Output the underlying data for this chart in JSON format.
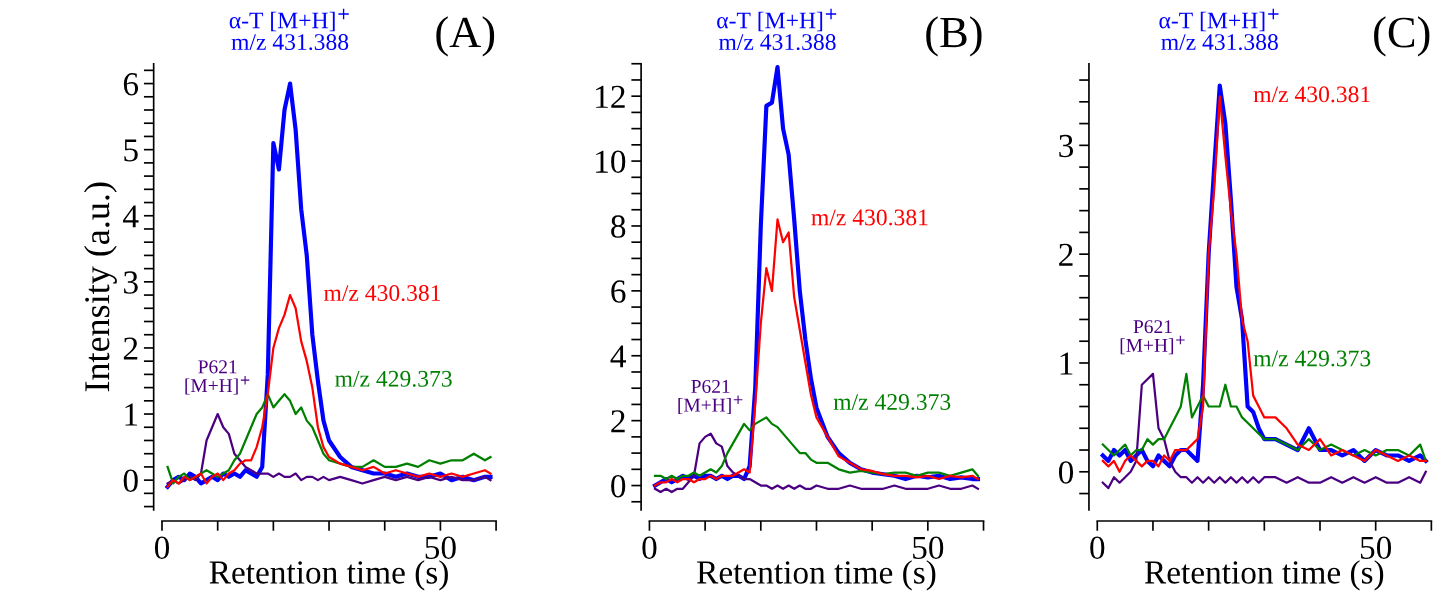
{
  "chart_data": [
    {
      "type": "line",
      "title": "(A)",
      "xlabel": "Retention time (s)",
      "ylabel": "Intensity (a.u.)",
      "grid": false,
      "legend": false,
      "marker": "none",
      "line_style": "solid",
      "xlim": [
        0,
        60
      ],
      "xticks": [
        0,
        {
          "value": 10,
          "label": null
        },
        {
          "value": 20,
          "label": null
        },
        {
          "value": 30,
          "label": null
        },
        {
          "value": 40,
          "label": null
        },
        50,
        {
          "value": 60,
          "label": null
        }
      ],
      "ylim": [
        -0.45,
        6.3
      ],
      "yticks": [
        {
          "value": -0.4,
          "label": null
        },
        {
          "value": -0.2,
          "label": null
        },
        0,
        {
          "value": 0.2,
          "label": null
        },
        {
          "value": 0.4,
          "label": null
        },
        {
          "value": 0.6,
          "label": null
        },
        {
          "value": 0.8,
          "label": null
        },
        1,
        {
          "value": 1.2,
          "label": null
        },
        {
          "value": 1.4,
          "label": null
        },
        {
          "value": 1.6,
          "label": null
        },
        {
          "value": 1.8,
          "label": null
        },
        2,
        {
          "value": 2.2,
          "label": null
        },
        {
          "value": 2.4,
          "label": null
        },
        {
          "value": 2.6,
          "label": null
        },
        {
          "value": 2.8,
          "label": null
        },
        3,
        {
          "value": 3.2,
          "label": null
        },
        {
          "value": 3.4,
          "label": null
        },
        {
          "value": 3.6,
          "label": null
        },
        {
          "value": 3.8,
          "label": null
        },
        4,
        {
          "value": 4.2,
          "label": null
        },
        {
          "value": 4.4,
          "label": null
        },
        {
          "value": 4.6,
          "label": null
        },
        {
          "value": 4.8,
          "label": null
        },
        5,
        {
          "value": 5.2,
          "label": null
        },
        {
          "value": 5.4,
          "label": null
        },
        {
          "value": 5.6,
          "label": null
        },
        {
          "value": 5.8,
          "label": null
        },
        6,
        {
          "value": 6.2,
          "label": null
        }
      ],
      "x": [
        1,
        2,
        3,
        4,
        5,
        6,
        7,
        8,
        9,
        10,
        11,
        12,
        13,
        14,
        15,
        16,
        17,
        18,
        19,
        20,
        21,
        22,
        23,
        24,
        25,
        26,
        27,
        28,
        29,
        30,
        32,
        34,
        36,
        38,
        40,
        42,
        44,
        46,
        48,
        50,
        52,
        54,
        56,
        58,
        59
      ],
      "series": [
        {
          "name": "α-T [M+H]$^{+}$\nm/z 431.388",
          "color": "#0000ff",
          "values": [
            -0.1,
            0.0,
            0.05,
            0.0,
            0.1,
            0.05,
            -0.05,
            0.0,
            0.05,
            0.0,
            0.1,
            0.05,
            0.1,
            0.05,
            0.15,
            0.1,
            0.05,
            0.2,
            1.6,
            5.1,
            4.7,
            5.6,
            6.0,
            5.3,
            4.1,
            3.4,
            2.2,
            1.5,
            0.9,
            0.6,
            0.35,
            0.2,
            0.15,
            0.1,
            0.1,
            0.05,
            0.1,
            0.05,
            0.05,
            0.1,
            0.0,
            0.05,
            0.0,
            0.05,
            0.05
          ]
        },
        {
          "name": "m/z 430.381",
          "color": "#ff0000",
          "values": [
            -0.1,
            0.0,
            -0.05,
            0.05,
            0.0,
            0.05,
            0.1,
            -0.05,
            0.05,
            0.1,
            0.0,
            0.1,
            0.15,
            0.25,
            0.3,
            0.3,
            0.5,
            0.8,
            1.3,
            2.0,
            2.3,
            2.5,
            2.8,
            2.6,
            2.1,
            1.8,
            1.4,
            0.8,
            0.5,
            0.35,
            0.25,
            0.2,
            0.15,
            0.2,
            0.1,
            0.15,
            0.1,
            0.05,
            0.1,
            0.05,
            0.1,
            0.05,
            0.1,
            0.15,
            0.1
          ]
        },
        {
          "name": "m/z 429.373",
          "color": "#008000",
          "values": [
            0.2,
            -0.05,
            0.05,
            0.1,
            0.0,
            0.05,
            0.1,
            0.15,
            0.1,
            0.05,
            0.1,
            0.15,
            0.3,
            0.4,
            0.6,
            0.8,
            1.0,
            1.1,
            1.3,
            1.1,
            1.2,
            1.3,
            1.2,
            1.0,
            1.1,
            0.9,
            0.8,
            0.6,
            0.4,
            0.3,
            0.25,
            0.2,
            0.2,
            0.3,
            0.2,
            0.2,
            0.25,
            0.2,
            0.3,
            0.25,
            0.3,
            0.3,
            0.4,
            0.3,
            0.35
          ]
        },
        {
          "name": "P621\n[M+H]$^{+}$",
          "color": "#4b0082",
          "values": [
            -0.05,
            0.0,
            -0.05,
            0.0,
            0.05,
            0.0,
            0.1,
            0.6,
            0.8,
            1.0,
            0.8,
            0.7,
            0.4,
            0.3,
            0.2,
            0.15,
            0.1,
            0.1,
            0.1,
            0.05,
            0.1,
            0.05,
            0.05,
            0.1,
            0.0,
            0.05,
            0.05,
            0.0,
            0.05,
            0.0,
            0.05,
            0.0,
            -0.05,
            0.0,
            0.05,
            0.0,
            0.05,
            0.0,
            0.05,
            0.0,
            0.05,
            0.0,
            0.0,
            0.05,
            0.0
          ]
        }
      ]
    },
    {
      "type": "line",
      "title": "(B)",
      "xlabel": "Retention time (s)",
      "grid": false,
      "legend": false,
      "marker": "none",
      "line_style": "solid",
      "xlim": [
        0,
        60
      ],
      "xticks": [
        0,
        {
          "value": 10,
          "label": null
        },
        {
          "value": 20,
          "label": null
        },
        {
          "value": 30,
          "label": null
        },
        {
          "value": 40,
          "label": null
        },
        50,
        {
          "value": 60,
          "label": null
        }
      ],
      "ylim": [
        -0.75,
        13.0
      ],
      "yticks": [
        {
          "value": -0.5,
          "label": null
        },
        0,
        {
          "value": 0.5,
          "label": null
        },
        {
          "value": 1,
          "label": null
        },
        {
          "value": 1.5,
          "label": null
        },
        2,
        {
          "value": 2.5,
          "label": null
        },
        {
          "value": 3,
          "label": null
        },
        {
          "value": 3.5,
          "label": null
        },
        4,
        {
          "value": 4.5,
          "label": null
        },
        {
          "value": 5,
          "label": null
        },
        {
          "value": 5.5,
          "label": null
        },
        6,
        {
          "value": 6.5,
          "label": null
        },
        {
          "value": 7,
          "label": null
        },
        {
          "value": 7.5,
          "label": null
        },
        8,
        {
          "value": 8.5,
          "label": null
        },
        {
          "value": 9,
          "label": null
        },
        {
          "value": 9.5,
          "label": null
        },
        10,
        {
          "value": 10.5,
          "label": null
        },
        {
          "value": 11,
          "label": null
        },
        {
          "value": 11.5,
          "label": null
        },
        12,
        {
          "value": 12.5,
          "label": null
        },
        {
          "value": 13,
          "label": null
        }
      ],
      "x": [
        1,
        2,
        3,
        4,
        5,
        6,
        7,
        8,
        9,
        10,
        11,
        12,
        13,
        14,
        15,
        16,
        17,
        18,
        19,
        20,
        21,
        22,
        23,
        24,
        25,
        26,
        27,
        28,
        29,
        30,
        32,
        34,
        36,
        38,
        40,
        42,
        44,
        46,
        48,
        50,
        52,
        54,
        56,
        58,
        59
      ],
      "series": [
        {
          "name": "α-T [M+H]$^{+}$\nm/z 431.388",
          "color": "#0000ff",
          "values": [
            0.0,
            0.1,
            0.2,
            0.1,
            0.2,
            0.3,
            0.2,
            0.3,
            0.2,
            0.3,
            0.3,
            0.2,
            0.3,
            0.2,
            0.3,
            0.3,
            0.2,
            0.6,
            3.0,
            8.0,
            11.7,
            11.8,
            12.9,
            11.0,
            10.2,
            8.2,
            6.0,
            4.5,
            3.3,
            2.4,
            1.5,
            1.0,
            0.7,
            0.5,
            0.4,
            0.35,
            0.3,
            0.2,
            0.3,
            0.25,
            0.3,
            0.2,
            0.25,
            0.2,
            0.2
          ]
        },
        {
          "name": "m/z 430.381",
          "color": "#ff0000",
          "values": [
            0.0,
            0.1,
            0.1,
            0.2,
            0.1,
            0.2,
            0.2,
            0.1,
            0.2,
            0.2,
            0.3,
            0.2,
            0.3,
            0.3,
            0.3,
            0.4,
            0.5,
            0.4,
            2.5,
            5.0,
            6.7,
            6.0,
            8.2,
            7.5,
            7.8,
            5.8,
            4.8,
            3.8,
            2.8,
            2.1,
            1.5,
            0.9,
            0.7,
            0.5,
            0.45,
            0.35,
            0.3,
            0.3,
            0.25,
            0.3,
            0.2,
            0.3,
            0.25,
            0.3,
            0.2
          ]
        },
        {
          "name": "m/z 429.373",
          "color": "#008000",
          "values": [
            0.3,
            0.3,
            0.2,
            0.3,
            0.2,
            0.3,
            0.3,
            0.4,
            0.3,
            0.4,
            0.5,
            0.4,
            0.6,
            1.0,
            1.3,
            1.6,
            1.9,
            1.7,
            1.9,
            2.0,
            2.1,
            1.9,
            1.8,
            1.6,
            1.4,
            1.2,
            1.0,
            1.0,
            0.8,
            0.7,
            0.7,
            0.5,
            0.4,
            0.45,
            0.4,
            0.35,
            0.4,
            0.4,
            0.3,
            0.4,
            0.4,
            0.3,
            0.4,
            0.5,
            0.3
          ]
        },
        {
          "name": "P621\n[M+H]$^{+}$",
          "color": "#4b0082",
          "values": [
            -0.1,
            -0.2,
            -0.1,
            -0.2,
            -0.1,
            -0.1,
            0.1,
            0.3,
            1.3,
            1.5,
            1.6,
            1.3,
            1.2,
            0.6,
            0.4,
            0.3,
            0.2,
            0.2,
            0.1,
            0.0,
            0.0,
            -0.1,
            0.0,
            -0.1,
            0.0,
            -0.1,
            0.0,
            -0.1,
            -0.1,
            0.0,
            -0.1,
            -0.1,
            0.0,
            -0.1,
            -0.1,
            -0.1,
            0.0,
            -0.1,
            -0.1,
            -0.1,
            0.0,
            -0.1,
            -0.1,
            0.0,
            -0.1
          ]
        }
      ]
    },
    {
      "type": "line",
      "title": "(C)",
      "xlabel": "Retention time (s)",
      "grid": false,
      "legend": false,
      "marker": "none",
      "line_style": "solid",
      "xlim": [
        0,
        60
      ],
      "xticks": [
        0,
        {
          "value": 10,
          "label": null
        },
        {
          "value": 20,
          "label": null
        },
        {
          "value": 30,
          "label": null
        },
        {
          "value": 40,
          "label": null
        },
        50,
        {
          "value": 60,
          "label": null
        }
      ],
      "ylim": [
        -0.35,
        3.75
      ],
      "yticks": [
        {
          "value": -0.2,
          "label": null
        },
        0,
        {
          "value": 0.2,
          "label": null
        },
        {
          "value": 0.4,
          "label": null
        },
        {
          "value": 0.6,
          "label": null
        },
        {
          "value": 0.8,
          "label": null
        },
        1,
        {
          "value": 1.2,
          "label": null
        },
        {
          "value": 1.4,
          "label": null
        },
        {
          "value": 1.6,
          "label": null
        },
        {
          "value": 1.8,
          "label": null
        },
        2,
        {
          "value": 2.2,
          "label": null
        },
        {
          "value": 2.4,
          "label": null
        },
        {
          "value": 2.6,
          "label": null
        },
        {
          "value": 2.8,
          "label": null
        },
        3,
        {
          "value": 3.2,
          "label": null
        },
        {
          "value": 3.4,
          "label": null
        },
        {
          "value": 3.6,
          "label": null
        }
      ],
      "x": [
        1,
        2,
        3,
        4,
        5,
        6,
        7,
        8,
        9,
        10,
        11,
        12,
        13,
        14,
        15,
        16,
        17,
        18,
        19,
        20,
        21,
        22,
        23,
        24,
        25,
        26,
        27,
        28,
        29,
        30,
        32,
        34,
        36,
        38,
        40,
        42,
        44,
        46,
        48,
        50,
        52,
        54,
        56,
        58,
        59
      ],
      "series": [
        {
          "name": "α-T [M+H]$^{+}$\nm/z 431.388",
          "color": "#0000ff",
          "values": [
            0.15,
            0.1,
            0.2,
            0.15,
            0.2,
            0.1,
            0.15,
            0.2,
            0.1,
            0.05,
            0.15,
            0.1,
            0.05,
            0.15,
            0.2,
            0.2,
            0.15,
            0.1,
            0.8,
            2.0,
            2.8,
            3.55,
            3.2,
            2.5,
            1.7,
            1.4,
            0.6,
            0.55,
            0.4,
            0.3,
            0.3,
            0.25,
            0.2,
            0.4,
            0.2,
            0.2,
            0.15,
            0.2,
            0.1,
            0.2,
            0.15,
            0.15,
            0.1,
            0.15,
            0.1
          ]
        },
        {
          "name": "m/z 430.381",
          "color": "#ff0000",
          "values": [
            0.1,
            0.05,
            0.1,
            0.0,
            0.1,
            0.15,
            0.1,
            0.05,
            0.1,
            0.1,
            0.05,
            0.15,
            0.1,
            0.2,
            0.2,
            0.2,
            0.25,
            0.3,
            0.6,
            2.0,
            2.6,
            3.45,
            2.9,
            2.4,
            2.0,
            1.4,
            1.2,
            0.7,
            0.6,
            0.5,
            0.5,
            0.4,
            0.25,
            0.2,
            0.3,
            0.15,
            0.2,
            0.15,
            0.1,
            0.2,
            0.15,
            0.1,
            0.15,
            0.1,
            0.1
          ]
        },
        {
          "name": "m/z 429.373",
          "color": "#008000",
          "values": [
            0.25,
            0.2,
            0.15,
            0.2,
            0.25,
            0.15,
            0.2,
            0.2,
            0.3,
            0.25,
            0.3,
            0.3,
            0.4,
            0.5,
            0.6,
            0.9,
            0.5,
            0.6,
            0.7,
            0.6,
            0.6,
            0.6,
            0.8,
            0.6,
            0.6,
            0.5,
            0.45,
            0.4,
            0.35,
            0.3,
            0.3,
            0.25,
            0.2,
            0.3,
            0.2,
            0.25,
            0.2,
            0.15,
            0.2,
            0.15,
            0.2,
            0.2,
            0.15,
            0.25,
            0.1
          ]
        },
        {
          "name": "P621\n[M+H]$^{+}$",
          "color": "#4b0082",
          "values": [
            -0.1,
            -0.15,
            -0.05,
            -0.1,
            -0.05,
            0.0,
            0.1,
            0.8,
            0.85,
            0.9,
            0.4,
            0.3,
            0.1,
            0.0,
            -0.05,
            -0.05,
            -0.1,
            -0.05,
            -0.1,
            -0.05,
            -0.1,
            -0.05,
            -0.1,
            -0.05,
            -0.1,
            -0.05,
            -0.1,
            -0.05,
            -0.1,
            -0.05,
            -0.05,
            -0.1,
            -0.05,
            -0.1,
            -0.1,
            -0.05,
            -0.1,
            -0.05,
            -0.1,
            -0.05,
            -0.1,
            -0.1,
            -0.05,
            -0.1,
            0.0
          ]
        }
      ]
    }
  ]
}
